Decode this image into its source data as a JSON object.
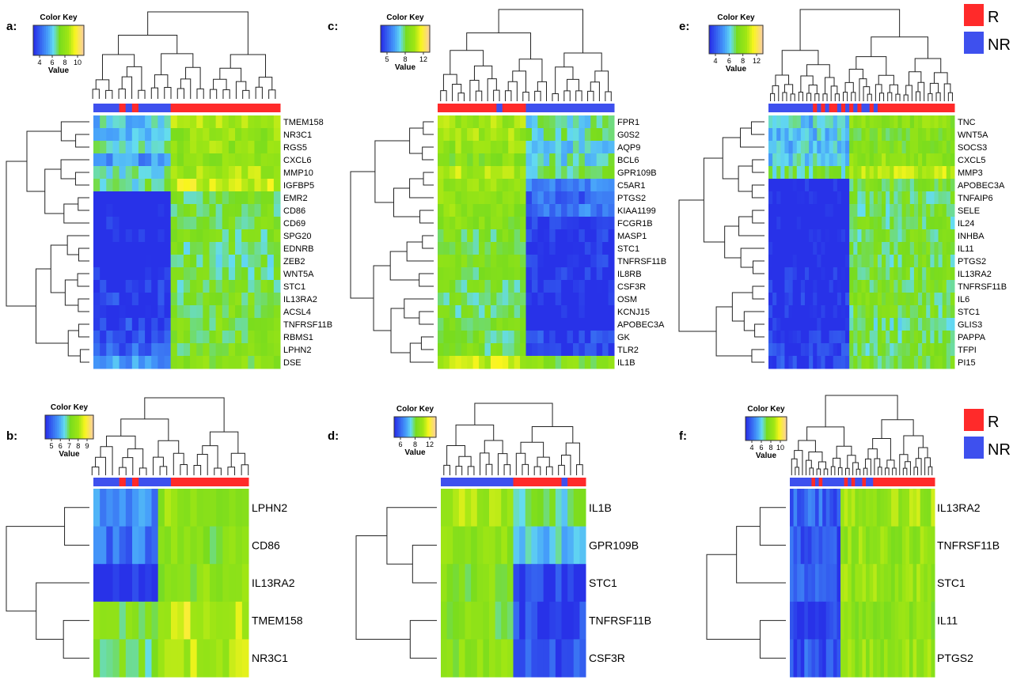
{
  "legend": {
    "items": [
      {
        "label": "R",
        "color": "#ff2a2a"
      },
      {
        "label": "NR",
        "color": "#3e50ee"
      }
    ]
  },
  "color_key": {
    "title": "Color Key",
    "value_label": "Value"
  },
  "chart_data": [
    {
      "type": "heatmap",
      "panel": "a:",
      "color_key_ticks": [
        "4",
        "6",
        "8",
        "10"
      ],
      "rows": [
        "TMEM158",
        "NR3C1",
        "RGS5",
        "CXCL6",
        "MMP10",
        "IGFBP5",
        "EMR2",
        "CD86",
        "CD69",
        "SPG20",
        "EDNRB",
        "ZEB2",
        "WNT5A",
        "STC1",
        "IL13RA2",
        "ACSL4",
        "TNFRSF11B",
        "RBMS1",
        "LPHN2",
        "DSE"
      ],
      "row_levels": [
        0.52,
        0.5,
        0.52,
        0.42,
        0.55,
        0.6,
        0.2,
        0.22,
        0.25,
        0.24,
        0.18,
        0.2,
        0.24,
        0.26,
        0.28,
        0.26,
        0.3,
        0.3,
        0.33,
        0.42
      ],
      "row_contrast": [
        0.18,
        0.15,
        0.14,
        0.18,
        0.16,
        0.18,
        0.35,
        0.33,
        0.32,
        0.3,
        0.35,
        0.32,
        0.3,
        0.28,
        0.28,
        0.3,
        0.27,
        0.27,
        0.24,
        0.18
      ],
      "columns": 29,
      "group_colors": [
        1,
        1,
        1,
        1,
        0,
        1,
        0,
        1,
        1,
        1,
        1,
        1,
        0,
        0,
        0,
        0,
        0,
        0,
        0,
        0,
        0,
        0,
        0,
        0,
        0,
        0,
        0,
        0,
        0
      ],
      "group_split": 12
    },
    {
      "type": "heatmap",
      "panel": "b:",
      "color_key_ticks": [
        "5",
        "6",
        "7",
        "8",
        "9"
      ],
      "rows": [
        "LPHN2",
        "CD86",
        "IL13RA2",
        "TMEM158",
        "NR3C1"
      ],
      "row_levels": [
        0.42,
        0.38,
        0.28,
        0.66,
        0.62
      ],
      "row_contrast": [
        0.22,
        0.22,
        0.35,
        0.12,
        0.12
      ],
      "columns": 24,
      "group_colors": [
        1,
        1,
        1,
        1,
        0,
        1,
        0,
        1,
        1,
        1,
        1,
        1,
        0,
        0,
        0,
        0,
        0,
        0,
        0,
        0,
        0,
        0,
        0,
        0
      ],
      "group_split": 10
    },
    {
      "type": "heatmap",
      "panel": "c:",
      "color_key_ticks": [
        "5",
        "8",
        "12"
      ],
      "rows": [
        "FPR1",
        "G0S2",
        "AQP9",
        "BCL6",
        "GPR109B",
        "C5AR1",
        "PTGS2",
        "KIAA1199",
        "FCGR1B",
        "MASP1",
        "STC1",
        "TNFRSF11B",
        "IL8RB",
        "CSF3R",
        "OSM",
        "KCNJ15",
        "APOBEC3A",
        "GK",
        "TLR2",
        "IL1B"
      ],
      "row_levels": [
        0.55,
        0.55,
        0.52,
        0.5,
        0.58,
        0.42,
        0.38,
        0.4,
        0.28,
        0.26,
        0.26,
        0.26,
        0.25,
        0.25,
        0.24,
        0.22,
        0.22,
        0.28,
        0.3,
        0.66
      ],
      "row_contrast": [
        0.14,
        0.12,
        0.14,
        0.1,
        0.14,
        0.26,
        0.26,
        0.24,
        0.32,
        0.3,
        0.3,
        0.3,
        0.3,
        0.3,
        0.3,
        0.32,
        0.32,
        0.26,
        0.24,
        0.1
      ],
      "columns": 30,
      "group_colors": [
        0,
        0,
        0,
        0,
        0,
        0,
        0,
        0,
        0,
        0,
        1,
        0,
        0,
        0,
        0,
        1,
        1,
        1,
        1,
        1,
        1,
        1,
        1,
        1,
        1,
        1,
        1,
        1,
        1,
        1
      ],
      "group_split": 15,
      "split_dir": "low_high"
    },
    {
      "type": "heatmap",
      "panel": "d:",
      "color_key_ticks": [
        "6",
        "8",
        "12"
      ],
      "rows": [
        "IL1B",
        "GPR109B",
        "STC1",
        "TNFRSF11B",
        "CSF3R"
      ],
      "row_levels": [
        0.58,
        0.5,
        0.32,
        0.3,
        0.34
      ],
      "row_contrast": [
        0.14,
        0.14,
        0.3,
        0.3,
        0.28
      ],
      "columns": 24,
      "group_colors": [
        1,
        1,
        1,
        1,
        1,
        1,
        1,
        1,
        1,
        1,
        1,
        1,
        0,
        0,
        0,
        0,
        0,
        0,
        0,
        0,
        1,
        0,
        0,
        0
      ],
      "group_split": 12,
      "split_dir": "low_high"
    },
    {
      "type": "heatmap",
      "panel": "e:",
      "color_key_ticks": [
        "4",
        "6",
        "8",
        "12"
      ],
      "rows": [
        "TNC",
        "WNT5A",
        "SOCS3",
        "CXCL5",
        "MMP3",
        "APOBEC3A",
        "TNFAIP6",
        "SELE",
        "IL24",
        "INHBA",
        "IL11",
        "PTGS2",
        "IL13RA2",
        "TNFRSF11B",
        "IL6",
        "STC1",
        "GLIS3",
        "PAPPA",
        "TFPI",
        "PI15"
      ],
      "row_levels": [
        0.48,
        0.46,
        0.45,
        0.5,
        0.6,
        0.25,
        0.22,
        0.22,
        0.22,
        0.22,
        0.22,
        0.22,
        0.24,
        0.26,
        0.26,
        0.24,
        0.22,
        0.24,
        0.26,
        0.28
      ],
      "row_contrast": [
        0.14,
        0.12,
        0.12,
        0.14,
        0.14,
        0.32,
        0.32,
        0.32,
        0.32,
        0.32,
        0.32,
        0.32,
        0.3,
        0.3,
        0.3,
        0.3,
        0.28,
        0.28,
        0.26,
        0.26
      ],
      "columns": 46,
      "group_colors": [
        1,
        1,
        1,
        1,
        1,
        1,
        1,
        1,
        1,
        1,
        1,
        0,
        1,
        0,
        1,
        0,
        0,
        1,
        0,
        1,
        0,
        1,
        0,
        1,
        1,
        0,
        1,
        0,
        0,
        0,
        0,
        0,
        0,
        0,
        0,
        0,
        0,
        0,
        0,
        0,
        0,
        0,
        0,
        0,
        0,
        0
      ],
      "group_split": 20
    },
    {
      "type": "heatmap",
      "panel": "f:",
      "color_key_ticks": [
        "4",
        "6",
        "8",
        "10"
      ],
      "rows": [
        "IL13RA2",
        "TNFRSF11B",
        "STC1",
        "IL11",
        "PTGS2"
      ],
      "row_levels": [
        0.4,
        0.36,
        0.36,
        0.3,
        0.36
      ],
      "row_contrast": [
        0.3,
        0.3,
        0.3,
        0.32,
        0.3
      ],
      "columns": 40,
      "group_colors": [
        1,
        1,
        1,
        1,
        1,
        1,
        0,
        1,
        0,
        1,
        1,
        1,
        1,
        1,
        1,
        0,
        1,
        0,
        1,
        1,
        0,
        1,
        1,
        0,
        0,
        0,
        0,
        0,
        0,
        0,
        0,
        0,
        0,
        0,
        0,
        0,
        0,
        0,
        0,
        0
      ],
      "group_split": 14
    }
  ]
}
